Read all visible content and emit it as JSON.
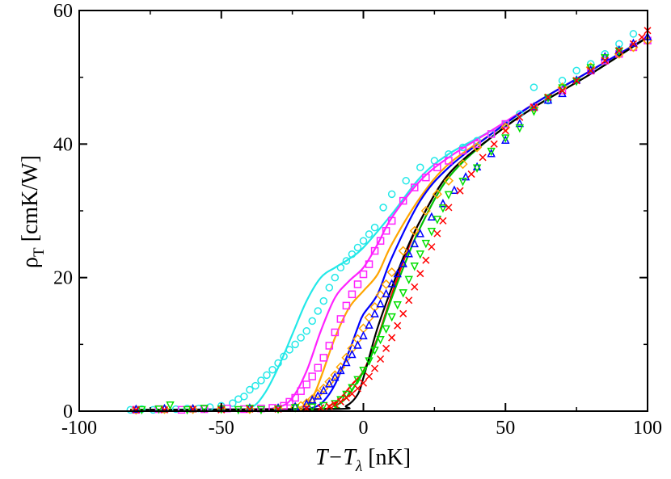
{
  "chart_data": {
    "type": "scatter",
    "title": "",
    "xlabel": {
      "main": "T−T",
      "sub": "λ",
      "unit": " [nK]"
    },
    "ylabel": {
      "main": "ρ",
      "sub": "T",
      "unit": " [cmK/W]"
    },
    "xlim": [
      -100,
      100
    ],
    "ylim": [
      0,
      60
    ],
    "xticks": [
      -100,
      -50,
      0,
      50,
      100
    ],
    "yticks": [
      0,
      20,
      40,
      60
    ],
    "xtick_labels": [
      "-100",
      "-50",
      "0",
      "50",
      "100"
    ],
    "ytick_labels": [
      "0",
      "20",
      "40",
      "60"
    ],
    "grid": false,
    "curves": [
      {
        "name": "cyan curve",
        "color": "#22e8e8",
        "points": [
          [
            -82,
            0.2
          ],
          [
            -50,
            0.3
          ],
          [
            -40,
            0.5
          ],
          [
            -35,
            2.5
          ],
          [
            -30,
            6.5
          ],
          [
            -25,
            11.5
          ],
          [
            -20,
            16.5
          ],
          [
            -15,
            20.0
          ],
          [
            -10,
            21.5
          ],
          [
            -5,
            22.8
          ],
          [
            0,
            24.5
          ],
          [
            10,
            29.5
          ],
          [
            20,
            35.0
          ],
          [
            30,
            38.5
          ],
          [
            45,
            42.0
          ],
          [
            60,
            46.0
          ],
          [
            80,
            51.0
          ],
          [
            100,
            56.0
          ]
        ]
      },
      {
        "name": "magenta curve",
        "color": "#ff22ff",
        "points": [
          [
            -82,
            0.2
          ],
          [
            -40,
            0.3
          ],
          [
            -30,
            0.6
          ],
          [
            -25,
            2.0
          ],
          [
            -20,
            6.0
          ],
          [
            -15,
            12.0
          ],
          [
            -10,
            17.0
          ],
          [
            -5,
            19.5
          ],
          [
            0,
            21.5
          ],
          [
            5,
            25.0
          ],
          [
            10,
            29.0
          ],
          [
            20,
            34.5
          ],
          [
            30,
            38.0
          ],
          [
            45,
            42.0
          ],
          [
            60,
            46.0
          ],
          [
            80,
            51.0
          ],
          [
            100,
            56.0
          ]
        ]
      },
      {
        "name": "orange curve",
        "color": "#ffa500",
        "points": [
          [
            -82,
            0.2
          ],
          [
            -30,
            0.3
          ],
          [
            -22,
            0.6
          ],
          [
            -18,
            2.0
          ],
          [
            -15,
            5.0
          ],
          [
            -10,
            11.0
          ],
          [
            -5,
            15.5
          ],
          [
            0,
            18.0
          ],
          [
            5,
            20.5
          ],
          [
            10,
            25.0
          ],
          [
            20,
            32.0
          ],
          [
            30,
            37.0
          ],
          [
            45,
            41.5
          ],
          [
            60,
            46.0
          ],
          [
            80,
            51.0
          ],
          [
            100,
            56.0
          ]
        ]
      },
      {
        "name": "blue curve",
        "color": "#0000ff",
        "points": [
          [
            -82,
            0.2
          ],
          [
            -25,
            0.3
          ],
          [
            -18,
            0.5
          ],
          [
            -14,
            1.5
          ],
          [
            -10,
            4.0
          ],
          [
            -5,
            9.0
          ],
          [
            -2,
            12.5
          ],
          [
            0,
            14.5
          ],
          [
            5,
            17.5
          ],
          [
            10,
            23.0
          ],
          [
            20,
            31.5
          ],
          [
            30,
            36.5
          ],
          [
            45,
            41.5
          ],
          [
            60,
            46.0
          ],
          [
            80,
            51.0
          ],
          [
            100,
            56.0
          ]
        ]
      },
      {
        "name": "red curve",
        "color": "#ff0000",
        "points": [
          [
            -82,
            0.2
          ],
          [
            -18,
            0.3
          ],
          [
            -12,
            0.8
          ],
          [
            -8,
            2.0
          ],
          [
            -4,
            4.0
          ],
          [
            0,
            6.0
          ],
          [
            5,
            11.0
          ],
          [
            10,
            17.5
          ],
          [
            15,
            23.5
          ],
          [
            20,
            28.5
          ],
          [
            30,
            35.5
          ],
          [
            45,
            41.0
          ],
          [
            60,
            45.5
          ],
          [
            80,
            50.5
          ],
          [
            100,
            56.0
          ]
        ]
      },
      {
        "name": "green curve",
        "color": "#00c000",
        "points": [
          [
            -82,
            0.2
          ],
          [
            -15,
            0.3
          ],
          [
            -10,
            0.8
          ],
          [
            -6,
            2.0
          ],
          [
            -2,
            4.5
          ],
          [
            2,
            7.5
          ],
          [
            6,
            12.0
          ],
          [
            10,
            17.0
          ],
          [
            15,
            22.5
          ],
          [
            20,
            27.5
          ],
          [
            30,
            35.0
          ],
          [
            45,
            41.0
          ],
          [
            60,
            45.5
          ],
          [
            80,
            50.5
          ],
          [
            100,
            56.0
          ]
        ]
      },
      {
        "name": "black curve",
        "color": "#000000",
        "points": [
          [
            -82,
            0.2
          ],
          [
            -12,
            0.3
          ],
          [
            -6,
            0.8
          ],
          [
            -2,
            2.5
          ],
          [
            0,
            5.0
          ],
          [
            2,
            8.0
          ],
          [
            5,
            12.5
          ],
          [
            10,
            18.5
          ],
          [
            15,
            24.0
          ],
          [
            20,
            28.5
          ],
          [
            30,
            35.5
          ],
          [
            45,
            41.0
          ],
          [
            60,
            45.5
          ],
          [
            80,
            50.5
          ],
          [
            100,
            56.0
          ]
        ]
      }
    ],
    "series": [
      {
        "name": "cyan circles",
        "marker": "circle",
        "color": "#22e8e8",
        "x": [
          -82,
          -78,
          -74,
          -70,
          -66,
          -62,
          -58,
          -54,
          -50,
          -46,
          -44,
          -42,
          -40,
          -38,
          -36,
          -34,
          -32,
          -30,
          -28,
          -26,
          -24,
          -22,
          -20,
          -18,
          -16,
          -14,
          -12,
          -10,
          -8,
          -6,
          -4,
          -2,
          0,
          2,
          4,
          7,
          10,
          15,
          20,
          25,
          30,
          35,
          40,
          45,
          50,
          55,
          60,
          65,
          70,
          75,
          80,
          85,
          90,
          95
        ],
        "y": [
          0.2,
          0.3,
          0.2,
          0.3,
          0.3,
          0.4,
          0.4,
          0.6,
          0.8,
          1.2,
          1.8,
          2.2,
          3.2,
          3.8,
          4.6,
          5.4,
          6.2,
          7.2,
          8.2,
          9.2,
          10.0,
          11.0,
          12.0,
          13.5,
          15.0,
          16.5,
          18.5,
          20.0,
          21.5,
          22.5,
          23.5,
          24.5,
          25.5,
          26.5,
          27.5,
          30.5,
          32.5,
          34.5,
          36.5,
          37.5,
          38.5,
          39.5,
          40.5,
          41.5,
          43.0,
          44.5,
          48.5,
          46.5,
          49.5,
          51.0,
          52.0,
          53.5,
          55.0,
          56.5
        ]
      },
      {
        "name": "magenta squares",
        "marker": "square",
        "color": "#ff22ff",
        "x": [
          -80,
          -72,
          -64,
          -56,
          -48,
          -42,
          -36,
          -32,
          -28,
          -26,
          -24,
          -22,
          -20,
          -18,
          -16,
          -14,
          -12,
          -10,
          -8,
          -6,
          -4,
          -2,
          0,
          2,
          4,
          6,
          8,
          10,
          14,
          18,
          22,
          26,
          30,
          35,
          40,
          45,
          50,
          60,
          70,
          80,
          85,
          90,
          95,
          100
        ],
        "y": [
          0.2,
          0.3,
          0.2,
          0.3,
          0.4,
          0.3,
          0.4,
          0.5,
          0.8,
          1.4,
          2.0,
          3.0,
          4.0,
          5.2,
          6.5,
          8.0,
          9.8,
          11.8,
          13.8,
          15.8,
          17.5,
          19.0,
          20.5,
          22.0,
          24.0,
          25.5,
          27.0,
          28.5,
          31.5,
          33.5,
          35.0,
          36.5,
          37.5,
          39.0,
          40.0,
          41.5,
          43.0,
          45.5,
          48.0,
          51.0,
          52.5,
          53.5,
          54.5,
          55.5
        ]
      },
      {
        "name": "orange diamonds",
        "marker": "diamond",
        "color": "#ffa500",
        "x": [
          -80,
          -70,
          -60,
          -50,
          -40,
          -30,
          -24,
          -22,
          -20,
          -18,
          -16,
          -14,
          -12,
          -10,
          -8,
          -6,
          -4,
          -2,
          0,
          2,
          4,
          6,
          8,
          10,
          14,
          18,
          22,
          26,
          30,
          35,
          40,
          50,
          60,
          70,
          80,
          90,
          95,
          100
        ],
        "y": [
          0.2,
          0.3,
          0.3,
          0.4,
          0.3,
          0.4,
          0.6,
          0.8,
          1.2,
          1.8,
          2.6,
          3.4,
          4.4,
          5.4,
          6.6,
          8.0,
          9.4,
          10.8,
          12.4,
          14.0,
          15.6,
          17.4,
          19.0,
          20.8,
          24.0,
          27.0,
          30.0,
          32.5,
          34.5,
          37.0,
          39.5,
          42.5,
          45.5,
          48.5,
          51.5,
          53.5,
          54.5,
          55.5
        ]
      },
      {
        "name": "blue triangles",
        "marker": "triangle-up",
        "color": "#0000ff",
        "x": [
          -80,
          -70,
          -60,
          -50,
          -40,
          -30,
          -24,
          -20,
          -18,
          -16,
          -14,
          -12,
          -10,
          -8,
          -6,
          -4,
          -2,
          0,
          2,
          4,
          6,
          8,
          10,
          12,
          14,
          16,
          18,
          20,
          24,
          28,
          32,
          36,
          40,
          45,
          50,
          55,
          60,
          65,
          70,
          75,
          80,
          85,
          90,
          95,
          100
        ],
        "y": [
          0.2,
          0.3,
          0.3,
          0.3,
          0.4,
          0.4,
          0.6,
          1.0,
          1.6,
          2.2,
          3.0,
          4.0,
          5.0,
          6.0,
          7.2,
          8.4,
          9.8,
          11.2,
          12.8,
          14.5,
          16.0,
          17.5,
          19.0,
          20.5,
          22.0,
          23.5,
          25.0,
          26.5,
          29.0,
          31.0,
          33.0,
          35.0,
          36.5,
          38.5,
          40.5,
          43.0,
          45.5,
          46.5,
          47.5,
          49.5,
          51.0,
          53.0,
          54.0,
          55.0,
          56.0
        ]
      },
      {
        "name": "green triangles",
        "marker": "triangle-down",
        "color": "#00e000",
        "x": [
          -78,
          -72,
          -68,
          -62,
          -56,
          -50,
          -44,
          -40,
          -36,
          -30,
          -24,
          -18,
          -14,
          -10,
          -8,
          -6,
          -4,
          -2,
          0,
          2,
          4,
          6,
          8,
          10,
          12,
          14,
          16,
          18,
          20,
          22,
          24,
          26,
          28,
          30,
          35,
          40,
          45,
          50,
          55,
          60,
          65,
          70,
          75,
          80,
          85,
          90
        ],
        "y": [
          0.3,
          0.4,
          1.0,
          0.3,
          0.5,
          0.4,
          0.3,
          0.5,
          0.3,
          0.4,
          0.6,
          0.7,
          0.9,
          1.2,
          1.8,
          2.6,
          3.6,
          4.8,
          6.2,
          7.6,
          9.2,
          10.8,
          12.4,
          14.2,
          16.0,
          17.8,
          19.8,
          21.8,
          23.6,
          25.2,
          27.0,
          28.8,
          30.5,
          32.5,
          34.5,
          36.5,
          39.0,
          41.0,
          42.5,
          45.0,
          47.0,
          48.5,
          49.5,
          51.5,
          53.0,
          54.0
        ]
      },
      {
        "name": "red crosses",
        "marker": "cross",
        "color": "#ff0000",
        "x": [
          -80,
          -70,
          -60,
          -50,
          -40,
          -30,
          -20,
          -15,
          -12,
          -10,
          -8,
          -6,
          -4,
          -2,
          0,
          2,
          4,
          6,
          8,
          10,
          12,
          14,
          16,
          18,
          20,
          22,
          24,
          26,
          28,
          30,
          34,
          38,
          42,
          46,
          50,
          55,
          60,
          65,
          70,
          75,
          80,
          85,
          90,
          95,
          98,
          100
        ],
        "y": [
          0.2,
          0.2,
          0.3,
          0.2,
          0.3,
          0.3,
          0.4,
          0.5,
          0.7,
          1.0,
          1.4,
          2.0,
          2.6,
          3.4,
          4.2,
          5.2,
          6.4,
          7.8,
          9.4,
          11.0,
          12.8,
          14.6,
          16.6,
          18.6,
          20.6,
          22.6,
          24.6,
          26.6,
          28.5,
          30.5,
          33.0,
          35.5,
          38.0,
          40.0,
          42.0,
          44.0,
          45.5,
          47.0,
          48.0,
          49.5,
          51.0,
          52.5,
          54.0,
          55.0,
          56.0,
          57.0
        ]
      }
    ]
  }
}
